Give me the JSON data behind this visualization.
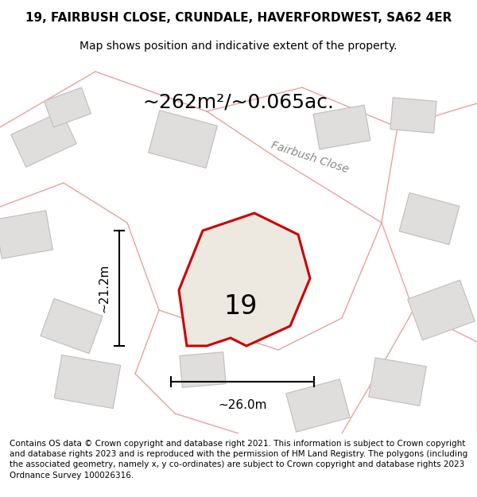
{
  "title_line1": "19, FAIRBUSH CLOSE, CRUNDALE, HAVERFORDWEST, SA62 4ER",
  "title_line2": "Map shows position and indicative extent of the property.",
  "area_text": "~262m²/~0.065ac.",
  "property_label": "19",
  "dim_vertical": "~21.2m",
  "dim_horizontal": "~26.0m",
  "road_label": "Fairbush Close",
  "footer_text": "Contains OS data © Crown copyright and database right 2021. This information is subject to Crown copyright and database rights 2023 and is reproduced with the permission of HM Land Registry. The polygons (including the associated geometry, namely x, y co-ordinates) are subject to Crown copyright and database rights 2023 Ordnance Survey 100026316.",
  "map_bg": "#f0eeeb",
  "building_fill": "#e0dedd",
  "building_edge": "#c0bcba",
  "road_line_color": "#e8a0a0",
  "property_edge": "#cc0000",
  "property_edge_width": 2.2,
  "title_fontsize": 11,
  "subtitle_fontsize": 10,
  "area_fontsize": 18,
  "label_fontsize": 24,
  "dim_fontsize": 11,
  "road_label_fontsize": 10,
  "footer_fontsize": 7.5
}
